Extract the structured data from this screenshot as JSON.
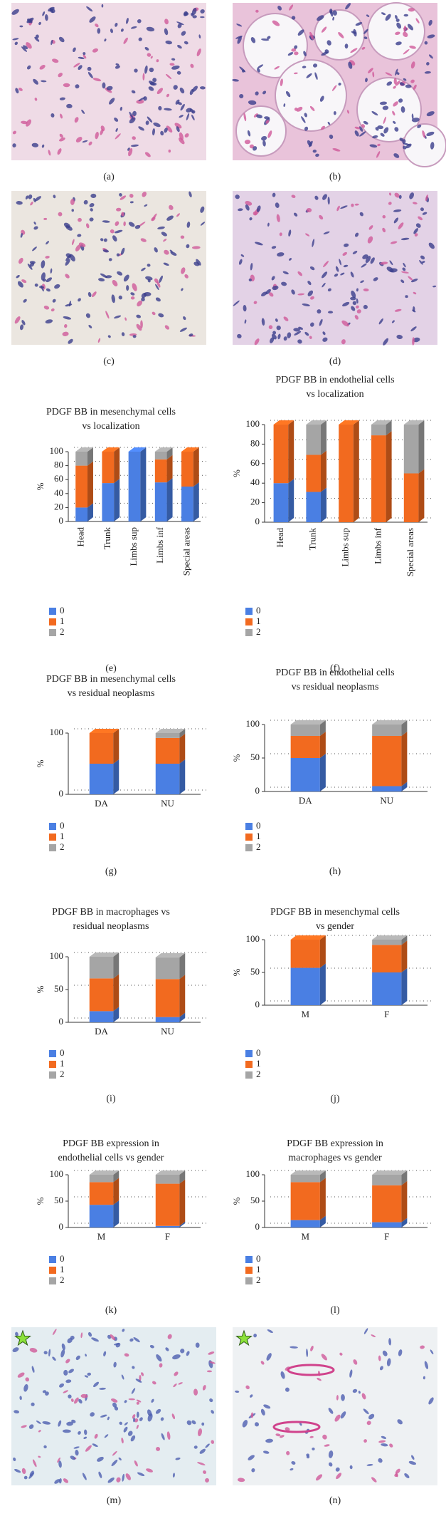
{
  "images": [
    {
      "label": "(a)"
    },
    {
      "label": "(b)"
    },
    {
      "label": "(c)"
    },
    {
      "label": "(d)"
    },
    {
      "label": "(m)"
    },
    {
      "label": "(n)"
    }
  ],
  "chart_data": [
    {
      "type": "bar",
      "stacked": true,
      "label": "(e)",
      "title": [
        "PDGF BB in mesenchymal cells",
        "vs localization"
      ],
      "y_label": "%",
      "categories": [
        "Head",
        "Trunk",
        "Limbs sup",
        "Limbs inf",
        "Special areas"
      ],
      "series": [
        {
          "name": "0",
          "color": "#4a7fe3",
          "values": [
            20,
            55,
            100,
            56,
            50
          ]
        },
        {
          "name": "1",
          "color": "#f26a1f",
          "values": [
            60,
            45,
            0,
            33,
            50
          ]
        },
        {
          "name": "2",
          "color": "#a5a5a5",
          "values": [
            20,
            0,
            0,
            11,
            0
          ]
        }
      ],
      "ylim": [
        0,
        100
      ],
      "yticks": [
        0,
        20,
        40,
        60,
        80,
        100
      ]
    },
    {
      "type": "bar",
      "stacked": true,
      "label": "(f)",
      "title": [
        "PDGF BB in endothelial cells",
        "vs localization"
      ],
      "y_label": "%",
      "categories": [
        "Head",
        "Trunk",
        "Limbs sup",
        "Limbs inf",
        "Special areas"
      ],
      "series": [
        {
          "name": "0",
          "color": "#4a7fe3",
          "values": [
            40,
            31,
            0,
            0,
            0
          ]
        },
        {
          "name": "1",
          "color": "#f26a1f",
          "values": [
            60,
            38,
            100,
            89,
            50
          ]
        },
        {
          "name": "2",
          "color": "#a5a5a5",
          "values": [
            0,
            31,
            0,
            11,
            50
          ]
        }
      ],
      "ylim": [
        0,
        100
      ],
      "yticks": [
        0,
        20,
        40,
        60,
        80,
        100
      ]
    },
    {
      "type": "bar",
      "stacked": true,
      "label": "(g)",
      "title": [
        "PDGF BB in mesenchymal cells",
        "vs residual neoplasms"
      ],
      "y_label": "%",
      "categories": [
        "DA",
        "NU"
      ],
      "series": [
        {
          "name": "0",
          "color": "#4a7fe3",
          "values": [
            50,
            50
          ]
        },
        {
          "name": "1",
          "color": "#f26a1f",
          "values": [
            50,
            42
          ]
        },
        {
          "name": "2",
          "color": "#a5a5a5",
          "values": [
            0,
            8
          ]
        }
      ],
      "ylim": [
        0,
        100
      ],
      "yticks": [
        0,
        100
      ]
    },
    {
      "type": "bar",
      "stacked": true,
      "label": "(h)",
      "title": [
        "PDGF BB in endothelial cells",
        "vs residual neoplasms"
      ],
      "y_label": "%",
      "categories": [
        "DA",
        "NU"
      ],
      "series": [
        {
          "name": "0",
          "color": "#4a7fe3",
          "values": [
            50,
            8
          ]
        },
        {
          "name": "1",
          "color": "#f26a1f",
          "values": [
            33,
            75
          ]
        },
        {
          "name": "2",
          "color": "#a5a5a5",
          "values": [
            17,
            17
          ]
        }
      ],
      "ylim": [
        0,
        100
      ],
      "yticks": [
        0,
        50,
        100
      ]
    },
    {
      "type": "bar",
      "stacked": true,
      "label": "(i)",
      "title": [
        "PDGF BB in macrophages vs",
        "residual neoplasms"
      ],
      "y_label": "%",
      "categories": [
        "DA",
        "NU"
      ],
      "series": [
        {
          "name": "0",
          "color": "#4a7fe3",
          "values": [
            17,
            8
          ]
        },
        {
          "name": "1",
          "color": "#f26a1f",
          "values": [
            50,
            58
          ]
        },
        {
          "name": "2",
          "color": "#a5a5a5",
          "values": [
            33,
            33
          ]
        }
      ],
      "ylim": [
        0,
        100
      ],
      "yticks": [
        0,
        50,
        100
      ]
    },
    {
      "type": "bar",
      "stacked": true,
      "label": "(j)",
      "title": [
        "PDGF BB in mesenchymal cells",
        "vs gender"
      ],
      "y_label": "%",
      "categories": [
        "M",
        "F"
      ],
      "series": [
        {
          "name": "0",
          "color": "#4a7fe3",
          "values": [
            57,
            50
          ]
        },
        {
          "name": "1",
          "color": "#f26a1f",
          "values": [
            43,
            42
          ]
        },
        {
          "name": "2",
          "color": "#a5a5a5",
          "values": [
            0,
            8
          ]
        }
      ],
      "ylim": [
        0,
        100
      ],
      "yticks": [
        0,
        50,
        100
      ]
    },
    {
      "type": "bar",
      "stacked": true,
      "label": "(k)",
      "title": [
        "PDGF BB expression in",
        "endothelial cells vs gender"
      ],
      "y_label": "%",
      "categories": [
        "M",
        "F"
      ],
      "series": [
        {
          "name": "0",
          "color": "#4a7fe3",
          "values": [
            43,
            3
          ]
        },
        {
          "name": "1",
          "color": "#f26a1f",
          "values": [
            43,
            80
          ]
        },
        {
          "name": "2",
          "color": "#a5a5a5",
          "values": [
            14,
            17
          ]
        }
      ],
      "ylim": [
        0,
        100
      ],
      "yticks": [
        0,
        50,
        100
      ]
    },
    {
      "type": "bar",
      "stacked": true,
      "label": "(l)",
      "title": [
        "PDGF BB expression in",
        "macrophages vs gender"
      ],
      "y_label": "%",
      "categories": [
        "M",
        "F"
      ],
      "series": [
        {
          "name": "0",
          "color": "#4a7fe3",
          "values": [
            14,
            10
          ]
        },
        {
          "name": "1",
          "color": "#f26a1f",
          "values": [
            72,
            70
          ]
        },
        {
          "name": "2",
          "color": "#a5a5a5",
          "values": [
            14,
            20
          ]
        }
      ],
      "ylim": [
        0,
        100
      ],
      "yticks": [
        0,
        50,
        100
      ]
    }
  ]
}
